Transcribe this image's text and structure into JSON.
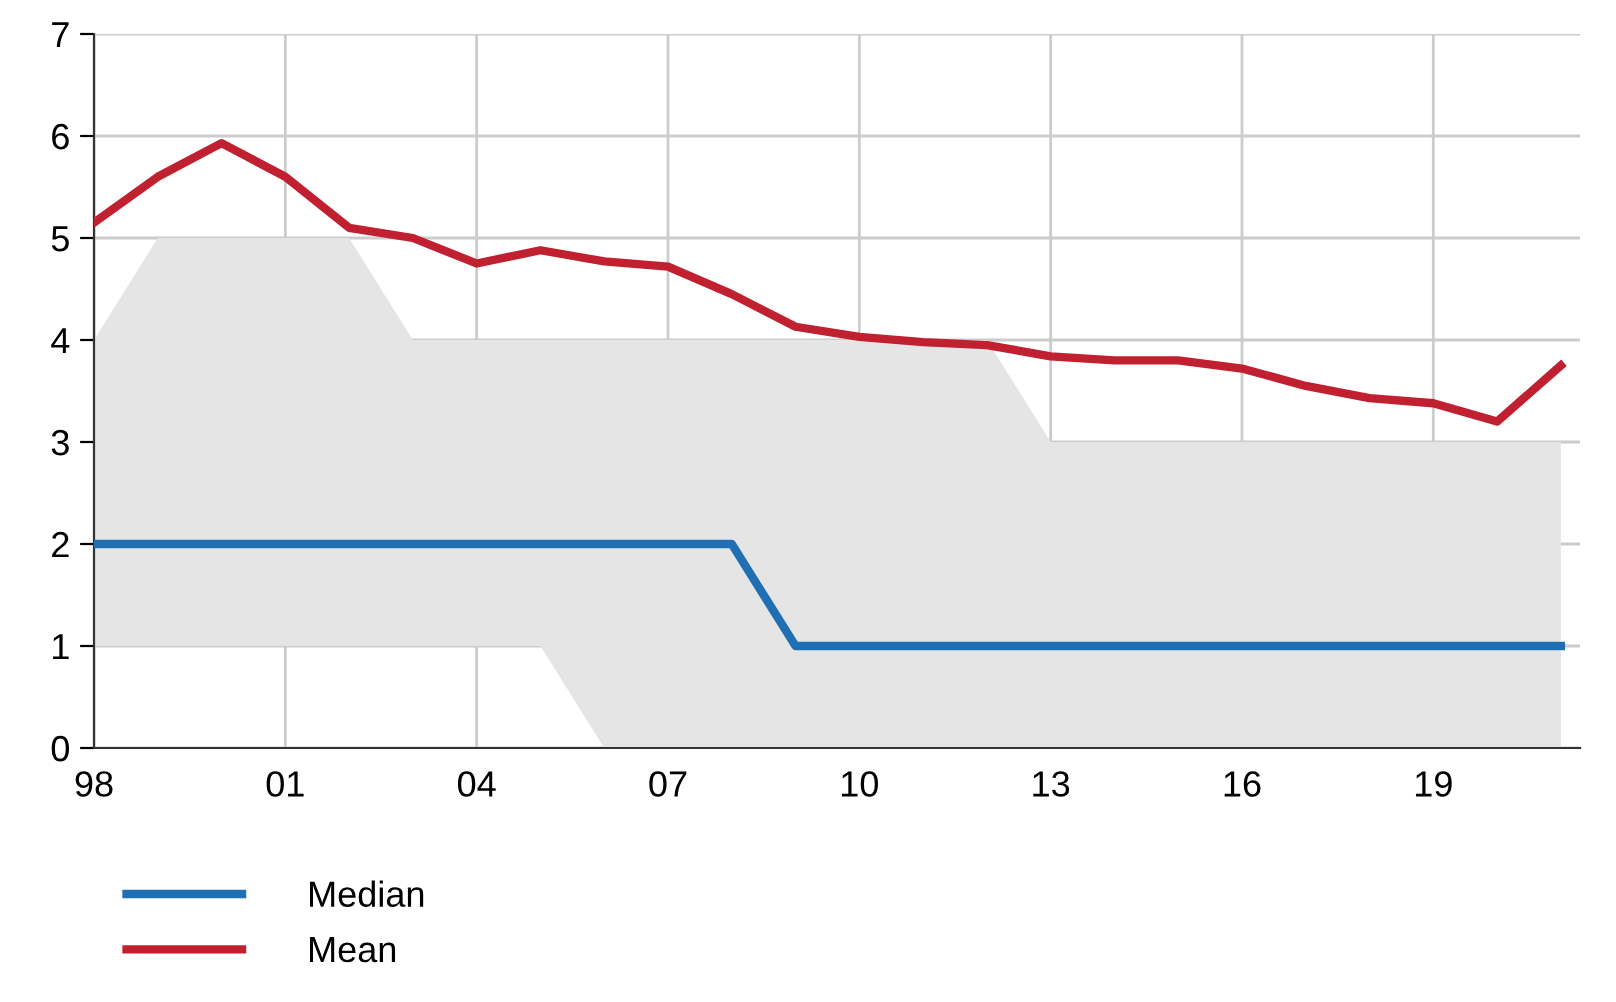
{
  "chart_data": {
    "type": "line",
    "x": [
      1998,
      1999,
      2000,
      2001,
      2002,
      2003,
      2004,
      2005,
      2006,
      2007,
      2008,
      2009,
      2010,
      2011,
      2012,
      2013,
      2014,
      2015,
      2016,
      2017,
      2018,
      2019,
      2020,
      2021
    ],
    "series": [
      {
        "name": "Median",
        "color": "#1f6fb2",
        "values": [
          2,
          2,
          2,
          2,
          2,
          2,
          2,
          2,
          2,
          2,
          2,
          1,
          1,
          1,
          1,
          1,
          1,
          1,
          1,
          1,
          1,
          1,
          1,
          1
        ],
        "lower": [
          1,
          1,
          1,
          1,
          1,
          1,
          1,
          1,
          0,
          0,
          0,
          0,
          0,
          0,
          0,
          0,
          0,
          0,
          0,
          0,
          0,
          0,
          0,
          0
        ],
        "upper": [
          4,
          5,
          5,
          5,
          5,
          4,
          4,
          4,
          4,
          4,
          4,
          4,
          4,
          4,
          4,
          3,
          3,
          3,
          3,
          3,
          3,
          3,
          3,
          3
        ]
      },
      {
        "name": "Mean",
        "color": "#c0202f",
        "values": [
          5.15,
          5.6,
          5.93,
          5.6,
          5.1,
          5.0,
          4.75,
          4.88,
          4.77,
          4.72,
          4.45,
          4.13,
          4.03,
          3.98,
          3.95,
          3.84,
          3.8,
          3.8,
          3.72,
          3.55,
          3.43,
          3.38,
          3.2,
          3.75
        ]
      }
    ],
    "xlim": [
      1998,
      2021.3
    ],
    "xticks": [
      {
        "value": 1998,
        "label": "98"
      },
      {
        "value": 2001,
        "label": "01"
      },
      {
        "value": 2004,
        "label": "04"
      },
      {
        "value": 2007,
        "label": "07"
      },
      {
        "value": 2010,
        "label": "10"
      },
      {
        "value": 2013,
        "label": "13"
      },
      {
        "value": 2016,
        "label": "16"
      },
      {
        "value": 2019,
        "label": "19"
      }
    ],
    "ylim": [
      0,
      7
    ],
    "yticks": [
      0,
      1,
      2,
      3,
      4,
      5,
      6,
      7
    ],
    "grid": true,
    "legend": "bottom left",
    "line_style": "solid",
    "marker": "none"
  }
}
